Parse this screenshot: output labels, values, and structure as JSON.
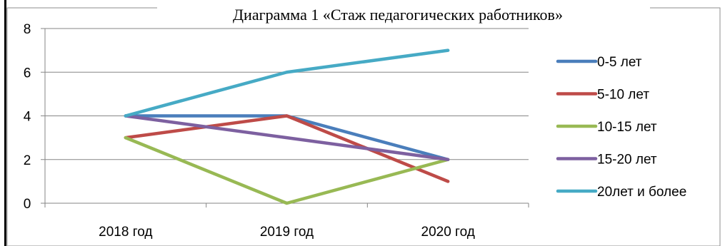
{
  "chart_data": {
    "type": "line",
    "title": "Диаграмма 1 «Стаж педагогических работников»",
    "categories": [
      "2018 год",
      "2019 год",
      "2020 год"
    ],
    "ylim": [
      0,
      8
    ],
    "yticks": [
      0,
      2,
      4,
      6,
      8
    ],
    "grid": true,
    "legend": "right",
    "series": [
      {
        "name": "0-5 лет",
        "values": [
          4,
          4,
          2
        ],
        "color": "#4a7ebb"
      },
      {
        "name": "5-10 лет",
        "values": [
          3,
          4,
          1
        ],
        "color": "#be4b48"
      },
      {
        "name": "10-15 лет",
        "values": [
          3,
          0,
          2
        ],
        "color": "#98b954"
      },
      {
        "name": "15-20 лет",
        "values": [
          4,
          3,
          2
        ],
        "color": "#7d60a0"
      },
      {
        "name": "20лет и более",
        "values": [
          4,
          6,
          7
        ],
        "color": "#46aac5"
      }
    ]
  }
}
